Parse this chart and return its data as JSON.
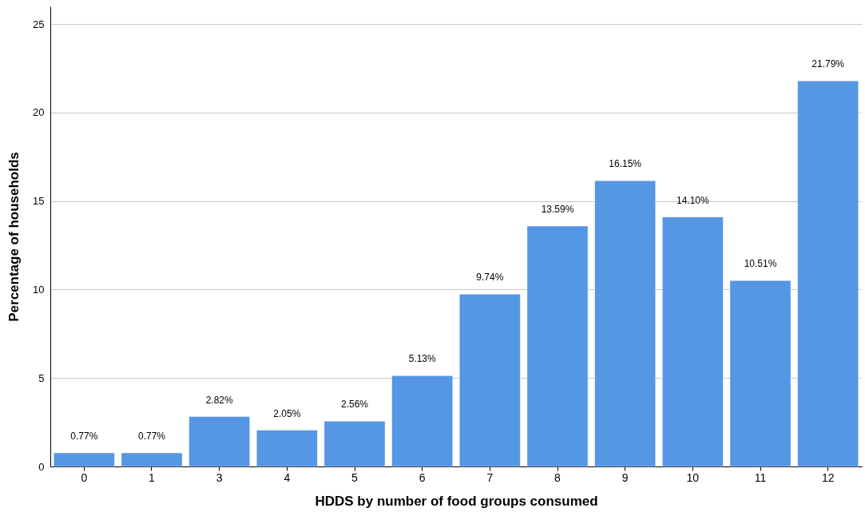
{
  "chart_data": {
    "type": "bar",
    "xlabel": "HDDS by number of food groups consumed",
    "ylabel": "Percentage of households",
    "categories": [
      "0",
      "1",
      "3",
      "4",
      "5",
      "6",
      "7",
      "8",
      "9",
      "10",
      "11",
      "12"
    ],
    "values": [
      0.77,
      0.77,
      2.82,
      2.05,
      2.56,
      5.13,
      9.74,
      13.59,
      16.15,
      14.1,
      10.51,
      21.79
    ],
    "value_labels": [
      "0.77%",
      "0.77%",
      "2.82%",
      "2.05%",
      "2.56%",
      "5.13%",
      "9.74%",
      "13.59%",
      "16.15%",
      "14.10%",
      "10.51%",
      "21.79%"
    ],
    "color": "#5596e5",
    "ylim": [
      0,
      26
    ],
    "yticks": [
      0,
      5,
      10,
      15,
      20,
      25
    ],
    "grid": "y"
  }
}
